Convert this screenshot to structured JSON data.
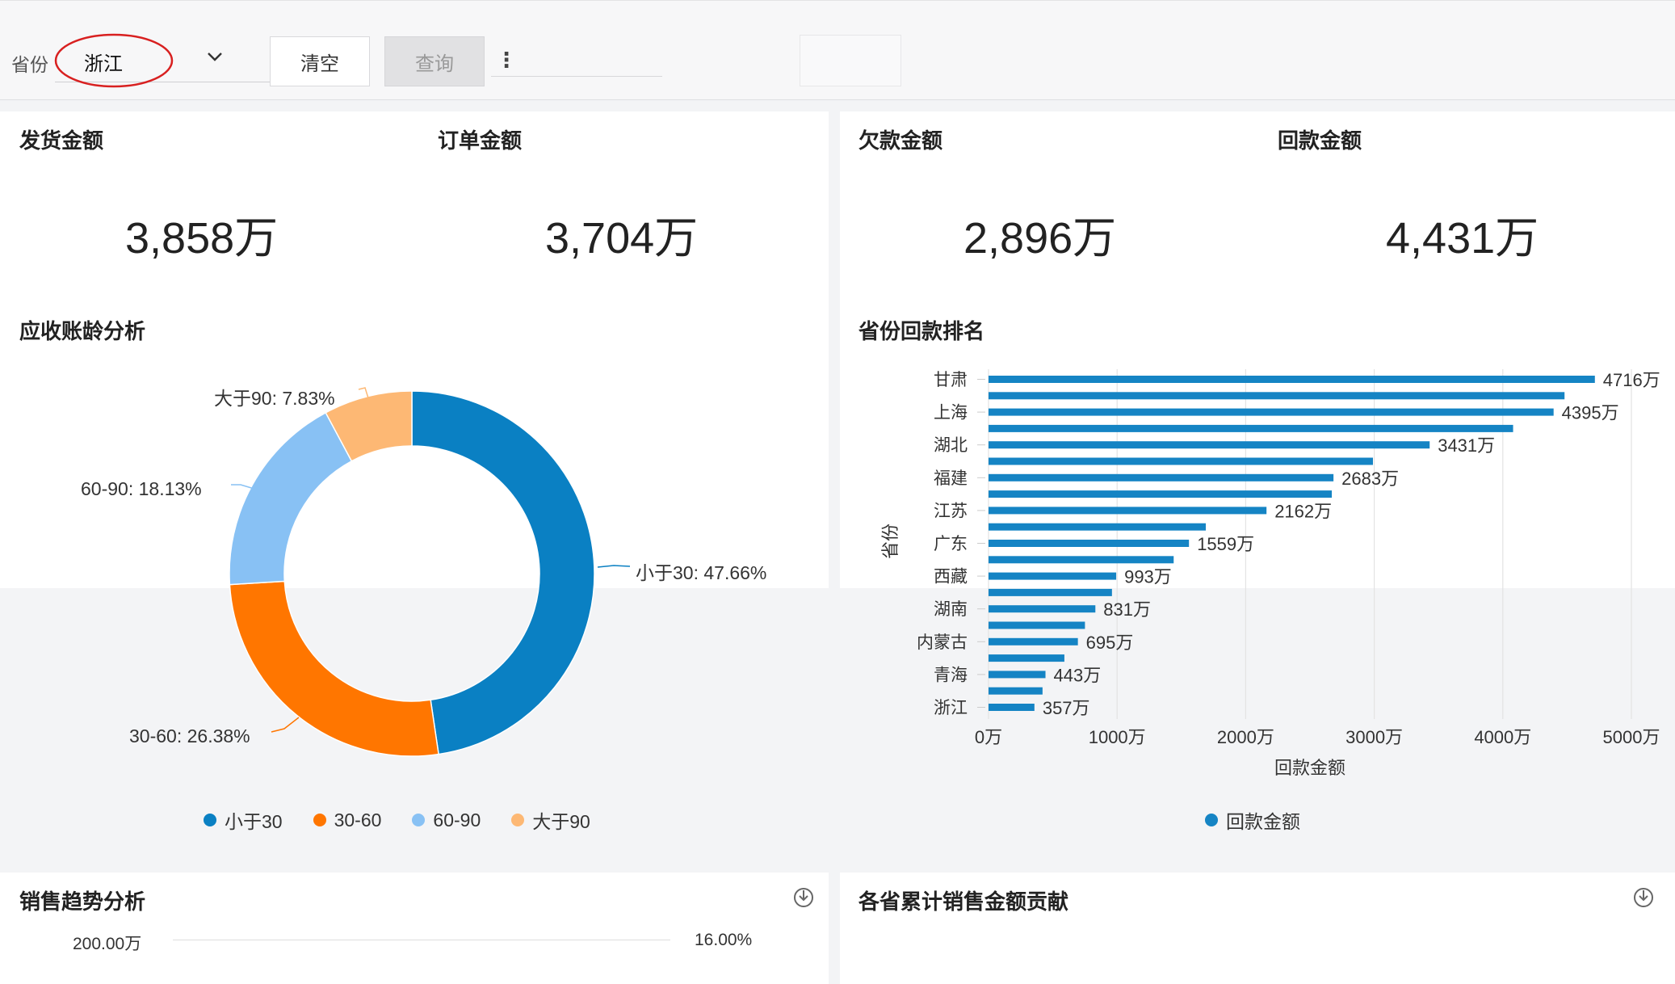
{
  "filter": {
    "label": "省份",
    "selected": "浙江",
    "clear_label": "清空",
    "query_label": "查询",
    "more": "⋮"
  },
  "kpis": [
    {
      "title": "发货金额",
      "value": "3,858万"
    },
    {
      "title": "订单金额",
      "value": "3,704万"
    },
    {
      "title": "欠款金额",
      "value": "2,896万"
    },
    {
      "title": "回款金额",
      "value": "4,431万"
    }
  ],
  "aging": {
    "title": "应收账龄分析",
    "labels": [
      "小于30: 47.66%",
      "30-60: 26.38%",
      "60-90: 18.13%",
      "大于90: 7.83%"
    ]
  },
  "ranking": {
    "title": "省份回款排名",
    "axis_label": "回款金额",
    "y_axis_label": "省份",
    "legend": "回款金额"
  },
  "trend": {
    "title": "销售趋势分析",
    "left_tick": "200.00万",
    "right_tick": "16.00%"
  },
  "contribution": {
    "title": "各省累计销售金额贡献"
  },
  "colors": {
    "blue": "#0a80c3",
    "orange": "#ff7600",
    "light_blue": "#88c1f4",
    "peach": "#fdb874",
    "bar": "#1584c4"
  },
  "chart_data": [
    {
      "type": "pie",
      "title": "应收账龄分析",
      "categories": [
        "小于30",
        "30-60",
        "60-90",
        "大于90"
      ],
      "values": [
        47.66,
        26.38,
        18.13,
        7.83
      ],
      "legend": "bottom"
    },
    {
      "type": "bar",
      "title": "省份回款排名",
      "orientation": "horizontal",
      "categories": [
        "甘肃",
        "上海",
        "湖北",
        "福建",
        "江苏",
        "广东",
        "西藏",
        "湖南",
        "内蒙古",
        "青海",
        "浙江"
      ],
      "bars": [
        4716,
        4480,
        4395,
        4080,
        3431,
        2990,
        2683,
        2670,
        2162,
        1690,
        1559,
        1440,
        993,
        960,
        831,
        750,
        695,
        590,
        443,
        420,
        357
      ],
      "value_labels": [
        "4716万",
        "4395万",
        "3431万",
        "2683万",
        "2162万",
        "1559万",
        "993万",
        "831万",
        "695万",
        "443万",
        "357万"
      ],
      "xlim": [
        0,
        5000
      ],
      "xticks": [
        "0万",
        "1000万",
        "2000万",
        "3000万",
        "4000万",
        "5000万"
      ],
      "xlabel": "回款金额",
      "ylabel": "省份",
      "grid": true,
      "legend": "bottom",
      "series": [
        {
          "name": "回款金额"
        }
      ]
    }
  ]
}
